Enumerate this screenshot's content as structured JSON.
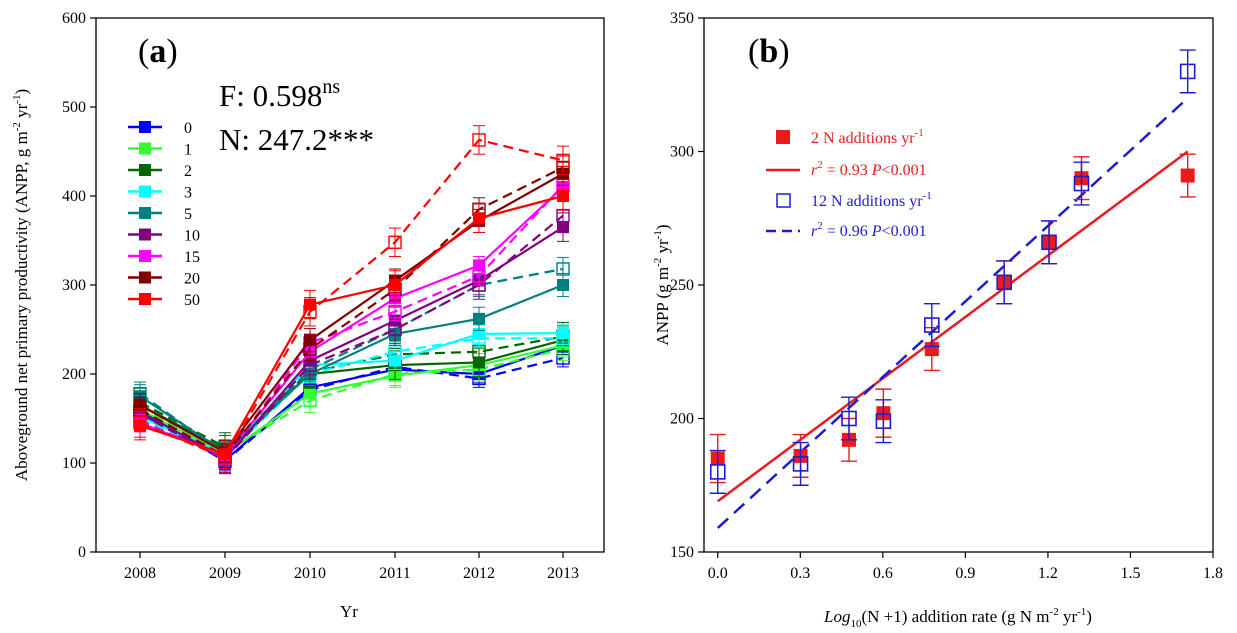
{
  "chart_data": [
    {
      "panel": "(a)",
      "panel_letter": "a",
      "type": "line",
      "xlabel": "Yr",
      "ylabel": "Aboveground net primary productivity (ANPP, g m-2 yr-1)",
      "ylabel_parts": [
        "Aboveground net primary productivity (ANPP, g m",
        "-2",
        " yr",
        "-1",
        ")"
      ],
      "categories": [
        "2008",
        "2009",
        "2010",
        "2011",
        "2012",
        "2013"
      ],
      "ylim": [
        0,
        600
      ],
      "yticks": [
        0,
        100,
        200,
        300,
        400,
        500,
        600
      ],
      "legend_position": "left",
      "annotation": {
        "f_label": "F: 0.598",
        "f_sup": "ns",
        "n_label": "N: 247.2***"
      },
      "line_styles": {
        "solid": "2 N additions yr-1 (filled squares)",
        "dashed": "12 N additions yr-1 (open squares)"
      },
      "series": [
        {
          "name": "0",
          "color": "#0000ff",
          "solid": [
            155,
            103,
            185,
            205,
            200,
            232
          ],
          "dashed": [
            158,
            102,
            182,
            208,
            195,
            218
          ]
        },
        {
          "name": "1",
          "color": "#33ff33",
          "solid": [
            160,
            110,
            178,
            198,
            210,
            232
          ],
          "dashed": [
            162,
            112,
            170,
            200,
            205,
            228
          ]
        },
        {
          "name": "2",
          "color": "#006600",
          "solid": [
            165,
            115,
            200,
            210,
            213,
            238
          ],
          "dashed": [
            168,
            118,
            202,
            222,
            225,
            242
          ]
        },
        {
          "name": "3",
          "color": "#00ffff",
          "solid": [
            152,
            110,
            210,
            215,
            245,
            246
          ],
          "dashed": [
            150,
            108,
            200,
            225,
            240,
            240
          ]
        },
        {
          "name": "5",
          "color": "#008080",
          "solid": [
            175,
            112,
            200,
            245,
            262,
            300
          ],
          "dashed": [
            178,
            110,
            205,
            250,
            300,
            318
          ]
        },
        {
          "name": "10",
          "color": "#800080",
          "solid": [
            158,
            105,
            215,
            260,
            305,
            365
          ],
          "dashed": [
            155,
            104,
            210,
            250,
            300,
            378
          ]
        },
        {
          "name": "15",
          "color": "#ff00ff",
          "solid": [
            145,
            108,
            225,
            285,
            322,
            410
          ],
          "dashed": [
            148,
            105,
            235,
            270,
            310,
            412
          ]
        },
        {
          "name": "20",
          "color": "#800000",
          "solid": [
            165,
            112,
            238,
            305,
            372,
            425
          ],
          "dashed": [
            160,
            108,
            228,
            295,
            385,
            432
          ]
        },
        {
          "name": "50",
          "color": "#ff0000",
          "solid": [
            142,
            110,
            278,
            300,
            375,
            400
          ],
          "dashed": [
            145,
            106,
            270,
            348,
            463,
            440
          ]
        }
      ],
      "error_bars_shown": true
    },
    {
      "panel": "(b)",
      "panel_letter": "b",
      "type": "scatter",
      "ylabel": "ANPP (g m-2 yr-1)",
      "ylabel_parts": [
        "ANPP (g m",
        "-2",
        " yr",
        "-1",
        ")"
      ],
      "xlabel_parts": [
        "Log",
        "10",
        "(N +1) addition rate (g N m",
        "-2",
        " yr",
        "-1",
        ")"
      ],
      "xlim": [
        -0.05,
        1.8
      ],
      "ylim": [
        150,
        350
      ],
      "xticks": [
        "0.0",
        "0.3",
        "0.6",
        "0.9",
        "1.2",
        "1.5",
        "1.8"
      ],
      "yticks": [
        150,
        200,
        250,
        300,
        350
      ],
      "legend_position": "upper-left",
      "series": [
        {
          "name": "2 N additions yr-1",
          "name_parts": [
            "2 N additions yr",
            "-1"
          ],
          "marker": "filled-square",
          "color": "#e81c1c",
          "x": [
            0.0,
            0.301,
            0.477,
            0.602,
            0.778,
            1.041,
            1.204,
            1.322,
            1.708
          ],
          "y": [
            185,
            186,
            192,
            202,
            226,
            251,
            266,
            290,
            291
          ],
          "err": [
            9,
            8,
            8,
            9,
            8,
            8,
            8,
            8,
            8
          ],
          "fit": {
            "x": [
              0.0,
              1.708
            ],
            "y": [
              169,
              300
            ],
            "style": "solid",
            "r2_label": "r",
            "r2_sup": "2",
            "r2_text": " = 0.93 ",
            "p_label": "P",
            "p_text": "<0.001"
          }
        },
        {
          "name": "12 N additions yr-1",
          "name_parts": [
            "12 N additions yr",
            "-1"
          ],
          "marker": "open-square",
          "color": "#1c1cd8",
          "x": [
            0.0,
            0.301,
            0.477,
            0.602,
            0.778,
            1.041,
            1.204,
            1.322,
            1.708
          ],
          "y": [
            180,
            183,
            200,
            199,
            235,
            251,
            266,
            288,
            330
          ],
          "err": [
            8,
            8,
            8,
            8,
            8,
            8,
            8,
            8,
            8
          ],
          "fit": {
            "x": [
              0.0,
              1.708
            ],
            "y": [
              159,
              320
            ],
            "style": "dashed",
            "r2_label": "r",
            "r2_sup": "2",
            "r2_text": " = 0.96 ",
            "p_label": "P",
            "p_text": "<0.001"
          }
        }
      ]
    }
  ]
}
